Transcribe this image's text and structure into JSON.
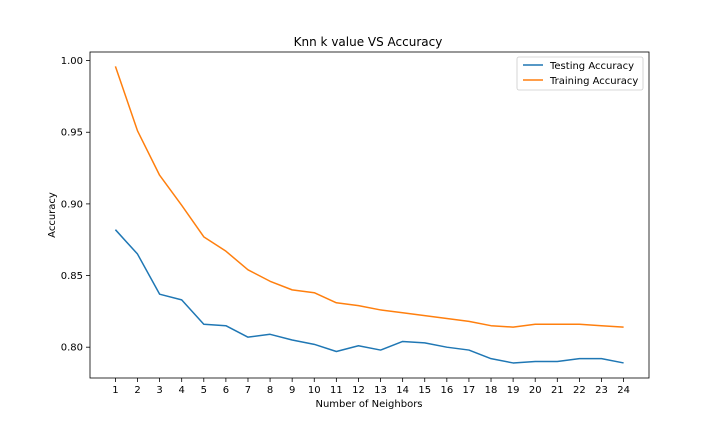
{
  "chart_data": {
    "type": "line",
    "title": "Knn k value VS Accuracy",
    "xlabel": "Number of Neighbors",
    "ylabel": "Accuracy",
    "x": [
      1,
      2,
      3,
      4,
      5,
      6,
      7,
      8,
      9,
      10,
      11,
      12,
      13,
      14,
      15,
      16,
      17,
      18,
      19,
      20,
      21,
      22,
      23,
      24
    ],
    "xlim": [
      -0.15,
      25.15
    ],
    "ylim": [
      0.7785,
      1.006
    ],
    "yticks": [
      0.8,
      0.85,
      0.9,
      0.95,
      1.0
    ],
    "ytick_labels": [
      "0.80",
      "0.85",
      "0.90",
      "0.95",
      "1.00"
    ],
    "grid": false,
    "legend_position": "top-right",
    "series": [
      {
        "name": "Testing Accuracy",
        "color": "#1f77b4",
        "values": [
          0.882,
          0.865,
          0.837,
          0.833,
          0.816,
          0.815,
          0.807,
          0.809,
          0.805,
          0.802,
          0.797,
          0.801,
          0.798,
          0.804,
          0.803,
          0.8,
          0.798,
          0.792,
          0.789,
          0.79,
          0.79,
          0.792,
          0.792,
          0.789
        ]
      },
      {
        "name": "Training Accuracy",
        "color": "#ff7f0e",
        "values": [
          0.996,
          0.951,
          0.92,
          0.899,
          0.877,
          0.867,
          0.854,
          0.846,
          0.84,
          0.838,
          0.831,
          0.829,
          0.826,
          0.824,
          0.822,
          0.82,
          0.818,
          0.815,
          0.814,
          0.816,
          0.816,
          0.816,
          0.815,
          0.814
        ]
      }
    ]
  }
}
